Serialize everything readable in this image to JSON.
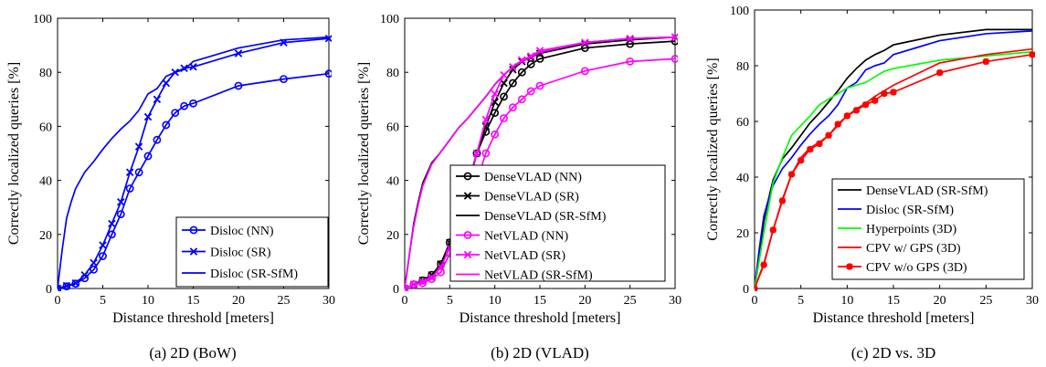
{
  "chart_data": [
    {
      "type": "line",
      "caption": "(a) 2D (BoW)",
      "xlabel": "Distance threshold [meters]",
      "ylabel": "Correctly localized queries [%]",
      "xlim": [
        0,
        30
      ],
      "ylim": [
        0,
        100
      ],
      "xticks": [
        0,
        5,
        10,
        15,
        20,
        25,
        30
      ],
      "yticks": [
        0,
        20,
        40,
        60,
        80,
        100
      ],
      "legend_position": "bottom-right",
      "series": [
        {
          "name": "Disloc (NN)",
          "color": "#0000ff",
          "marker": "circle",
          "x": [
            0,
            1,
            2,
            3,
            4,
            5,
            6,
            7,
            8,
            9,
            10,
            11,
            12,
            13,
            14,
            15,
            20,
            25,
            30
          ],
          "y": [
            0,
            0.8,
            1.8,
            3.8,
            7,
            12,
            20,
            27.5,
            37,
            43,
            49,
            55,
            60.5,
            65,
            67.5,
            68.5,
            75,
            77.5,
            79.5
          ]
        },
        {
          "name": "Disloc (SR)",
          "color": "#0000ff",
          "marker": "x",
          "x": [
            0,
            1,
            2,
            3,
            4,
            5,
            6,
            7,
            8,
            9,
            10,
            11,
            12,
            13,
            14,
            15,
            20,
            25,
            30
          ],
          "y": [
            0,
            1,
            2,
            5,
            9.5,
            16,
            24,
            32,
            43,
            52.5,
            63.5,
            70,
            76,
            80,
            81.5,
            82,
            87,
            91,
            92.5
          ]
        },
        {
          "name": "Disloc (SR-SfM)",
          "color": "#0000ff",
          "marker": "none",
          "x": [
            0,
            0.5,
            1,
            1.5,
            2,
            3,
            4,
            5,
            6,
            7,
            8,
            9,
            10,
            11,
            12,
            13,
            14,
            15,
            20,
            25,
            30
          ],
          "y": [
            0,
            14,
            26,
            32,
            37,
            43,
            47,
            51.5,
            55.5,
            59,
            62,
            66,
            72,
            74,
            78.5,
            80,
            81,
            84,
            89,
            92,
            93
          ]
        }
      ]
    },
    {
      "type": "line",
      "caption": "(b) 2D (VLAD)",
      "xlabel": "Distance threshold [meters]",
      "ylabel": "Correctly localized queries [%]",
      "xlim": [
        0,
        30
      ],
      "ylim": [
        0,
        100
      ],
      "xticks": [
        0,
        5,
        10,
        15,
        20,
        25,
        30
      ],
      "yticks": [
        0,
        20,
        40,
        60,
        80,
        100
      ],
      "legend_position": "bottom-right",
      "series": [
        {
          "name": "DenseVLAD (NN)",
          "color": "#000000",
          "marker": "circle",
          "x": [
            0,
            1,
            2,
            3,
            4,
            5,
            6,
            7,
            8,
            9,
            10,
            11,
            12,
            13,
            14,
            15,
            20,
            25,
            30
          ],
          "y": [
            0,
            1.5,
            3,
            5,
            9,
            17,
            28,
            38,
            50,
            58,
            65,
            71,
            76,
            80,
            83,
            85,
            89,
            90.5,
            91.5
          ]
        },
        {
          "name": "DenseVLAD (SR)",
          "color": "#000000",
          "marker": "x",
          "x": [
            0,
            1,
            2,
            3,
            4,
            5,
            6,
            7,
            8,
            9,
            10,
            11,
            12,
            13,
            14,
            15,
            20,
            25,
            30
          ],
          "y": [
            0,
            1.5,
            3,
            5,
            9,
            17,
            28,
            38,
            50,
            60,
            69,
            76,
            81,
            84,
            85.5,
            87,
            90.5,
            92,
            93
          ]
        },
        {
          "name": "DenseVLAD (SR-SfM)",
          "color": "#000000",
          "marker": "none",
          "x": [
            0,
            0.5,
            1,
            1.5,
            2,
            3,
            4,
            5,
            6,
            7,
            8,
            9,
            10,
            11,
            12,
            13,
            14,
            15,
            20,
            25,
            30
          ],
          "y": [
            0,
            12,
            24,
            32,
            39,
            46.5,
            50.5,
            55,
            59.5,
            63,
            67,
            71,
            75.5,
            79,
            82,
            84,
            85.5,
            87.5,
            91,
            92.5,
            93
          ]
        },
        {
          "name": "NetVLAD (NN)",
          "color": "#ff00ff",
          "marker": "circle",
          "x": [
            0,
            1,
            2,
            3,
            4,
            5,
            6,
            7,
            8,
            9,
            10,
            11,
            12,
            13,
            14,
            15,
            20,
            25,
            30
          ],
          "y": [
            0,
            1.5,
            2,
            3.5,
            6,
            13,
            22.5,
            33,
            40,
            50,
            57,
            63,
            67,
            70,
            73,
            75,
            80.5,
            84,
            85
          ]
        },
        {
          "name": "NetVLAD (SR)",
          "color": "#ff00ff",
          "marker": "x",
          "x": [
            0,
            1,
            2,
            3,
            4,
            5,
            6,
            7,
            8,
            9,
            10,
            11,
            12,
            13,
            14,
            15,
            20,
            25,
            30
          ],
          "y": [
            0,
            1.5,
            2.5,
            4,
            8,
            15,
            25,
            36,
            50,
            62.5,
            72,
            79,
            82,
            84.5,
            86,
            88,
            91,
            92.5,
            93
          ]
        },
        {
          "name": "NetVLAD (SR-SfM)",
          "color": "#ff00ff",
          "marker": "none",
          "x": [
            0,
            0.5,
            1,
            1.5,
            2,
            3,
            4,
            5,
            6,
            7,
            8,
            9,
            10,
            11,
            12,
            13,
            14,
            15,
            20,
            25,
            30
          ],
          "y": [
            0,
            12,
            23,
            31,
            38,
            46,
            50.5,
            55,
            59.5,
            63,
            67,
            71,
            75.5,
            79,
            82,
            84,
            85.5,
            87.5,
            91,
            92.5,
            93
          ]
        }
      ]
    },
    {
      "type": "line",
      "caption": "(c) 2D vs. 3D",
      "xlabel": "Distance threshold [meters]",
      "ylabel": "Correctly localized queries [%]",
      "xlim": [
        0,
        30
      ],
      "ylim": [
        0,
        100
      ],
      "xticks": [
        0,
        5,
        10,
        15,
        20,
        25,
        30
      ],
      "yticks": [
        0,
        20,
        40,
        60,
        80,
        100
      ],
      "legend_position": "bottom-right",
      "series": [
        {
          "name": "DenseVLAD (SR-SfM)",
          "color": "#000000",
          "marker": "none",
          "x": [
            0,
            0.5,
            1,
            1.5,
            2,
            3,
            4,
            5,
            6,
            7,
            8,
            9,
            10,
            11,
            12,
            13,
            14,
            15,
            20,
            25,
            30
          ],
          "y": [
            0,
            12,
            24,
            32,
            39,
            46.5,
            50.5,
            55,
            59.5,
            63,
            67,
            71,
            75.5,
            79,
            82,
            84,
            85.5,
            87.5,
            91,
            93,
            93
          ]
        },
        {
          "name": "Disloc (SR-SfM)",
          "color": "#0000ff",
          "marker": "none",
          "x": [
            0,
            0.5,
            1,
            1.5,
            2,
            3,
            4,
            5,
            6,
            7,
            8,
            9,
            10,
            11,
            12,
            13,
            14,
            15,
            20,
            25,
            30
          ],
          "y": [
            0,
            14,
            26,
            32,
            37,
            43,
            47,
            51.5,
            55.5,
            59,
            62,
            66,
            72,
            74,
            78.5,
            80,
            81,
            84,
            89,
            91.5,
            92.5
          ]
        },
        {
          "name": "Hyperpoints (3D)",
          "color": "#00ff00",
          "marker": "none",
          "x": [
            0,
            1,
            2,
            3,
            4,
            5,
            6,
            7,
            8,
            9,
            10,
            11,
            12,
            13,
            14,
            15,
            20,
            25,
            30
          ],
          "y": [
            0,
            20,
            38,
            47,
            55,
            58.5,
            62,
            66,
            68,
            70,
            72,
            73,
            74,
            76,
            78,
            79,
            82,
            83.5,
            85
          ]
        },
        {
          "name": "CPV w/ GPS (3D)",
          "color": "#ff0000",
          "marker": "none",
          "x": [
            0,
            1,
            2,
            3,
            4,
            5,
            6,
            7,
            8,
            9,
            10,
            11,
            12,
            13,
            14,
            15,
            20,
            25,
            30
          ],
          "y": [
            0,
            9,
            21,
            32,
            41,
            47,
            50.5,
            52.5,
            55,
            58.5,
            62,
            64.5,
            66.5,
            69,
            71,
            73,
            81,
            84,
            86
          ]
        },
        {
          "name": "CPV w/o GPS (3D)",
          "color": "#ff0000",
          "marker": "star",
          "x": [
            0,
            1,
            2,
            3,
            4,
            5,
            6,
            7,
            8,
            9,
            10,
            11,
            12,
            13,
            14,
            15,
            20,
            25,
            30
          ],
          "y": [
            0,
            8.5,
            21,
            31.5,
            41,
            46,
            50,
            52,
            55,
            59,
            62,
            64,
            66,
            67.5,
            70,
            70.5,
            77.5,
            81.5,
            84
          ]
        }
      ]
    }
  ]
}
